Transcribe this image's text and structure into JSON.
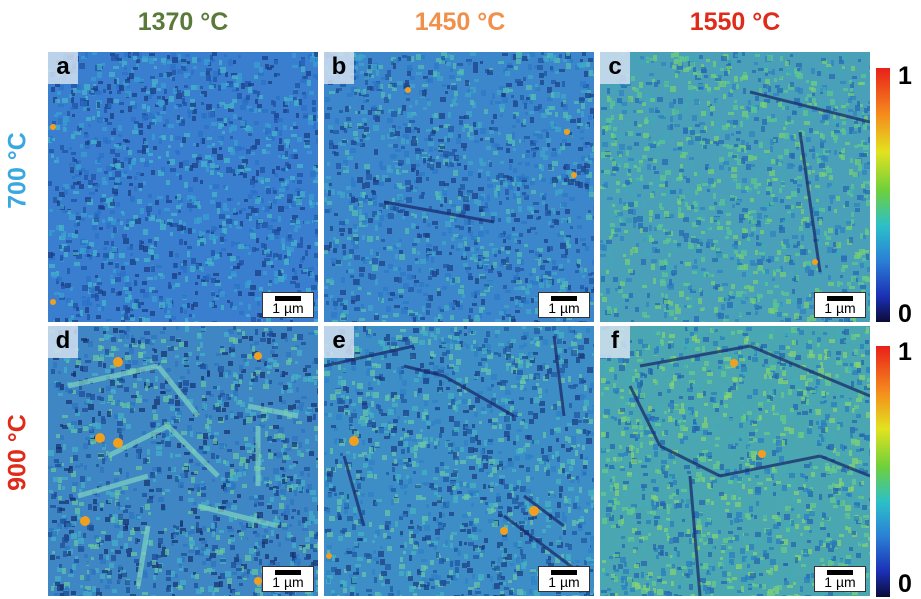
{
  "columns": [
    {
      "label": "1370 °C",
      "color": "#5a7a3a"
    },
    {
      "label": "1450 °C",
      "color": "#f0904a"
    },
    {
      "label": "1550 °C",
      "color": "#e02a1a"
    }
  ],
  "rows": [
    {
      "label": "700 °C",
      "color": "#3aa8e0"
    },
    {
      "label": "900 °C",
      "color": "#e02a1a"
    }
  ],
  "panels": [
    {
      "label": "a",
      "scale": "1 µm",
      "base": "#3a7fcf"
    },
    {
      "label": "b",
      "scale": "1 µm",
      "base": "#3c86cc"
    },
    {
      "label": "c",
      "scale": "1 µm",
      "base": "#4aa0b8"
    },
    {
      "label": "d",
      "scale": "1 µm",
      "base": "#3f86c4"
    },
    {
      "label": "e",
      "scale": "1 µm",
      "base": "#3d8ec6"
    },
    {
      "label": "f",
      "scale": "1 µm",
      "base": "#4aa6b0"
    }
  ],
  "colorbar": {
    "max": "1",
    "min": "0"
  }
}
